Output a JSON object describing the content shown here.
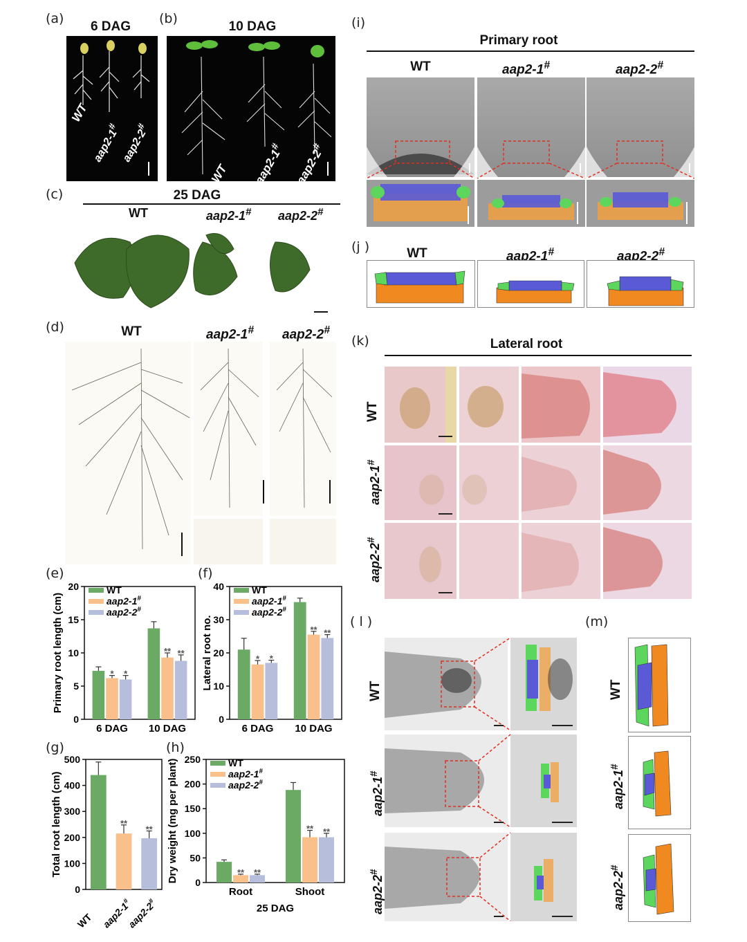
{
  "panels": {
    "a": {
      "label": "(a)",
      "title": "6 DAG",
      "labels": [
        "WT",
        "aap2-1",
        "aap2-2"
      ]
    },
    "b": {
      "label": "(b)",
      "title": "10 DAG",
      "labels": [
        "WT",
        "aap2-1",
        "aap2-2"
      ]
    },
    "c": {
      "label": "(c)",
      "title": "25 DAG",
      "labels": [
        "WT",
        "aap2-1",
        "aap2-2"
      ]
    },
    "d": {
      "label": "(d)",
      "labels": [
        "WT",
        "aap2-1",
        "aap2-2"
      ]
    },
    "e": {
      "label": "(e)"
    },
    "f": {
      "label": "(f)"
    },
    "g": {
      "label": "(g)"
    },
    "h": {
      "label": "(h)"
    },
    "i": {
      "label": "(i)",
      "title": "Primary root",
      "labels": [
        "WT",
        "aap2-1",
        "aap2-2"
      ]
    },
    "j": {
      "label": "(j )",
      "labels": [
        "WT",
        "aap2-1",
        "aap2-2"
      ]
    },
    "k": {
      "label": "(k)",
      "title": "Lateral root",
      "labels": [
        "WT",
        "aap2-1",
        "aap2-2"
      ]
    },
    "l": {
      "label": "( l )",
      "labels": [
        "WT",
        "aap2-1",
        "aap2-2"
      ]
    },
    "m": {
      "label": "(m)",
      "labels": [
        "WT",
        "aap2-1",
        "aap2-2"
      ]
    }
  },
  "superscript": "#",
  "colors": {
    "wt": "#6aaa64",
    "aap21": "#f9c08c",
    "aap22": "#b6bedc",
    "blue_cells": "#5a5ad6",
    "green_cells": "#5cd65c",
    "orange_cells": "#f0a040",
    "dashed_box": "#e03020"
  },
  "chart_data": [
    {
      "id": "e",
      "type": "bar",
      "categories": [
        "6 DAG",
        "10 DAG"
      ],
      "ylabel": "Primary root length (cm)",
      "ylim": [
        0,
        20
      ],
      "yticks": [
        0,
        5,
        10,
        15,
        20
      ],
      "series": [
        {
          "name": "WT",
          "values": [
            7.3,
            13.7
          ],
          "errors": [
            0.6,
            1.0
          ],
          "sig": [
            "",
            ""
          ]
        },
        {
          "name": "aap2-1",
          "values": [
            6.2,
            9.3
          ],
          "errors": [
            0.4,
            0.7
          ],
          "sig": [
            "*",
            "**"
          ]
        },
        {
          "name": "aap2-2",
          "values": [
            6.0,
            8.8
          ],
          "errors": [
            0.6,
            0.9
          ],
          "sig": [
            "*",
            "**"
          ]
        }
      ]
    },
    {
      "id": "f",
      "type": "bar",
      "categories": [
        "6 DAG",
        "10 DAG"
      ],
      "ylabel": "Lateral root no.",
      "ylim": [
        0,
        40
      ],
      "yticks": [
        0,
        10,
        20,
        30,
        40
      ],
      "series": [
        {
          "name": "WT",
          "values": [
            21,
            35.3
          ],
          "errors": [
            3.4,
            1.2
          ],
          "sig": [
            "",
            ""
          ]
        },
        {
          "name": "aap2-1",
          "values": [
            16.5,
            25.5
          ],
          "errors": [
            1.2,
            1.0
          ],
          "sig": [
            "*",
            "**"
          ]
        },
        {
          "name": "aap2-2",
          "values": [
            17,
            24.5
          ],
          "errors": [
            0.8,
            1.0
          ],
          "sig": [
            "*",
            "**"
          ]
        }
      ]
    },
    {
      "id": "g",
      "type": "bar",
      "categories": [
        "WT",
        "aap2-1",
        "aap2-2"
      ],
      "ylabel": "Total root length (cm)",
      "ylim": [
        0,
        500
      ],
      "yticks": [
        0,
        100,
        200,
        300,
        400,
        500
      ],
      "values": [
        440,
        215,
        197
      ],
      "errors": [
        50,
        33,
        28
      ],
      "sig": [
        "",
        "**",
        "**"
      ]
    },
    {
      "id": "h",
      "type": "bar",
      "categories": [
        "Root",
        "Shoot"
      ],
      "xlabel": "25 DAG",
      "ylabel": "Dry weight (mg per plant)",
      "ylim": [
        0,
        250
      ],
      "yticks": [
        0,
        50,
        100,
        150,
        200,
        250
      ],
      "series": [
        {
          "name": "WT",
          "values": [
            42,
            188
          ],
          "errors": [
            4,
            15
          ],
          "sig": [
            "",
            ""
          ]
        },
        {
          "name": "aap2-1",
          "values": [
            15,
            92
          ],
          "errors": [
            2,
            14
          ],
          "sig": [
            "**",
            "**"
          ]
        },
        {
          "name": "aap2-2",
          "values": [
            15,
            92
          ],
          "errors": [
            2,
            8
          ],
          "sig": [
            "**",
            "**"
          ]
        }
      ]
    }
  ]
}
